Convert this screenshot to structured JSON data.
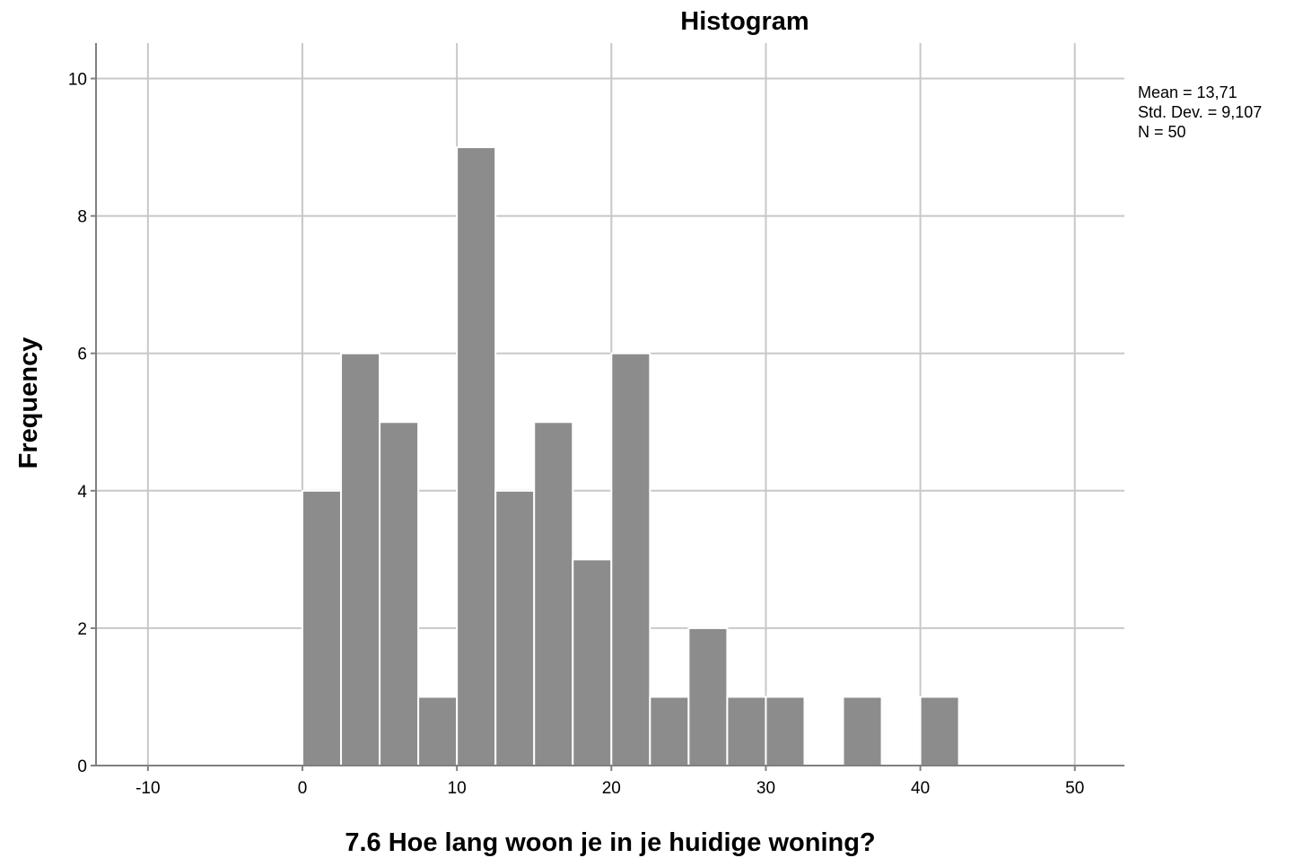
{
  "chart_data": {
    "type": "bar",
    "title": "Histogram",
    "xlabel": "7.6 Hoe lang woon je in je huidige woning?",
    "ylabel": "Frequency",
    "xlim": [
      -13.3,
      53.1
    ],
    "ylim": [
      0,
      10.5
    ],
    "x_ticks": [
      -10,
      0,
      10,
      20,
      30,
      40,
      50
    ],
    "y_ticks": [
      0,
      2,
      4,
      6,
      8,
      10
    ],
    "grid": true,
    "bin_width": 2.5,
    "bins": [
      {
        "start": 0.0,
        "end": 2.5,
        "count": 4
      },
      {
        "start": 2.5,
        "end": 5.0,
        "count": 6
      },
      {
        "start": 5.0,
        "end": 7.5,
        "count": 5
      },
      {
        "start": 7.5,
        "end": 10.0,
        "count": 1
      },
      {
        "start": 10.0,
        "end": 12.5,
        "count": 9
      },
      {
        "start": 12.5,
        "end": 15.0,
        "count": 4
      },
      {
        "start": 15.0,
        "end": 17.5,
        "count": 5
      },
      {
        "start": 17.5,
        "end": 20.0,
        "count": 3
      },
      {
        "start": 20.0,
        "end": 22.5,
        "count": 6
      },
      {
        "start": 22.5,
        "end": 25.0,
        "count": 1
      },
      {
        "start": 25.0,
        "end": 27.5,
        "count": 2
      },
      {
        "start": 27.5,
        "end": 30.0,
        "count": 1
      },
      {
        "start": 30.0,
        "end": 32.5,
        "count": 1
      },
      {
        "start": 32.5,
        "end": 35.0,
        "count": 0
      },
      {
        "start": 35.0,
        "end": 37.5,
        "count": 1
      },
      {
        "start": 37.5,
        "end": 40.0,
        "count": 0
      },
      {
        "start": 40.0,
        "end": 42.5,
        "count": 1
      }
    ],
    "stats": {
      "mean": "Mean = 13,71",
      "std_dev": "Std. Dev. = 9,107",
      "n": "N = 50"
    },
    "legend_position": "top-right",
    "colors": {
      "bar_fill": "#8c8c8c",
      "bar_stroke": "#ffffff",
      "grid": "#c8c8c8",
      "axis": "#808080"
    }
  }
}
